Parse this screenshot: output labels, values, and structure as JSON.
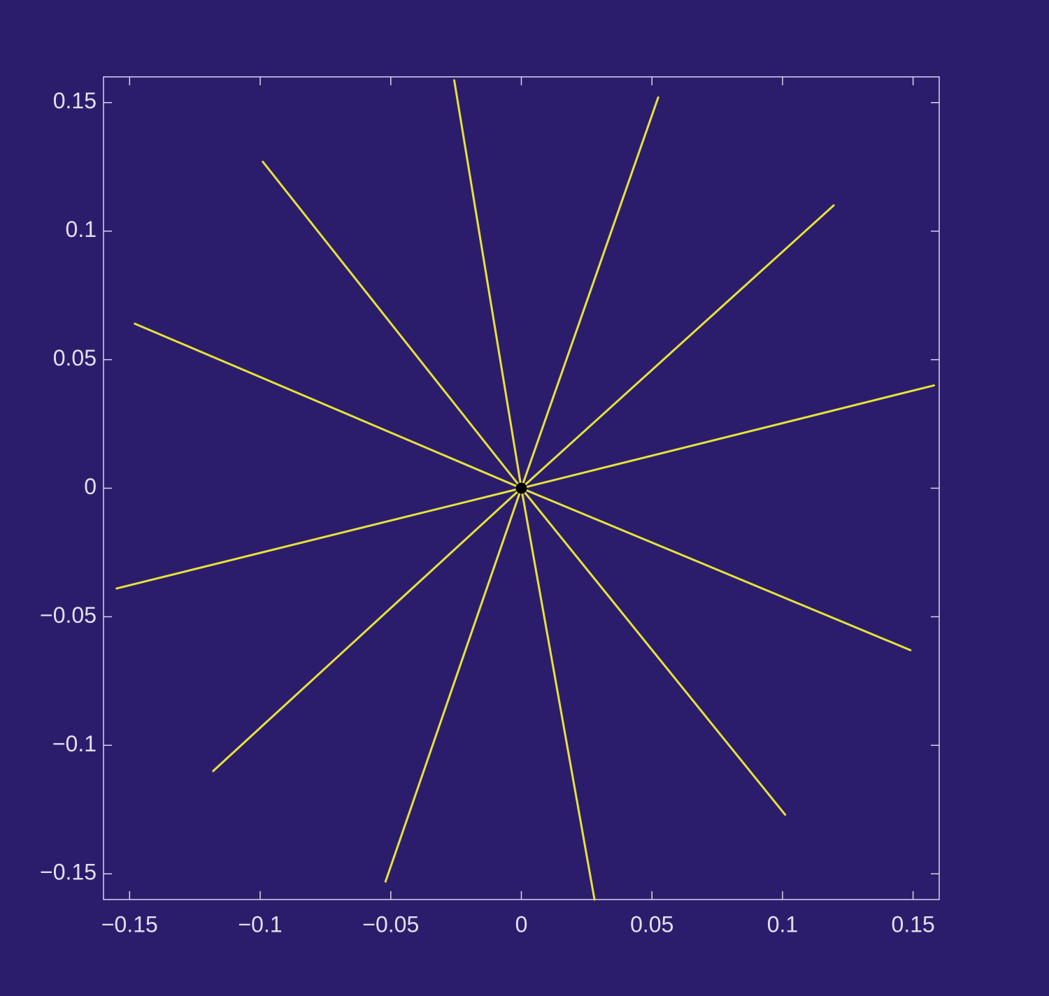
{
  "chart_data": {
    "type": "line",
    "series": [
      {
        "color": "#e6e23a",
        "x": [
          0,
          -0.0257,
          0,
          0.0524,
          0,
          0.1196,
          0,
          0.158,
          0,
          0.149,
          0,
          0.101,
          0,
          0.028,
          0,
          -0.052,
          0,
          -0.118,
          0,
          -0.155,
          0,
          -0.148,
          0,
          -0.099,
          0
        ],
        "y": [
          0,
          0.1587,
          0,
          0.152,
          0,
          0.11,
          0,
          0.04,
          0,
          -0.063,
          0,
          -0.127,
          0,
          -0.16,
          0,
          -0.153,
          0,
          -0.11,
          0,
          -0.039,
          0,
          0.064,
          0,
          0.127,
          0
        ]
      }
    ],
    "marker": {
      "x": 0,
      "y": 0,
      "color": "#000000"
    },
    "xlim": [
      -0.16,
      0.16
    ],
    "ylim": [
      -0.16,
      0.16
    ],
    "xticks": [
      {
        "value": -0.15,
        "label": "−0.15"
      },
      {
        "value": -0.1,
        "label": "−0.1"
      },
      {
        "value": -0.05,
        "label": "−0.05"
      },
      0,
      0.05,
      0.1,
      0.15
    ],
    "yticks": [
      {
        "value": -0.15,
        "label": "−0.15"
      },
      {
        "value": -0.1,
        "label": "−0.1"
      },
      {
        "value": -0.05,
        "label": "−0.05"
      },
      0,
      0.05,
      0.1,
      0.15
    ]
  }
}
